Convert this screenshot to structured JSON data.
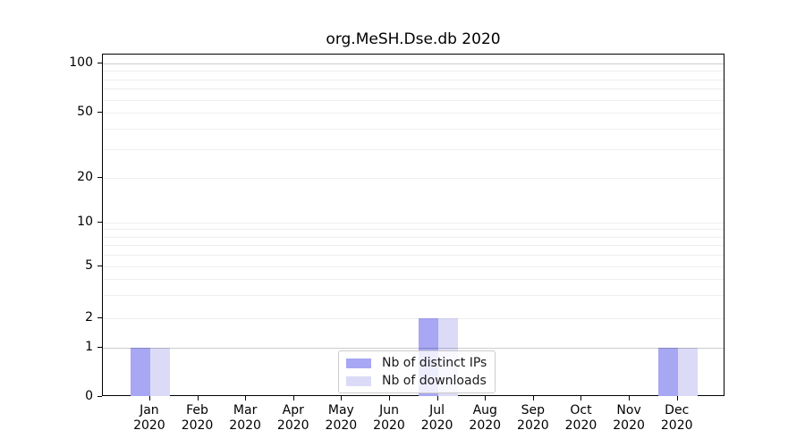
{
  "title": "org.MeSH.Dse.db 2020",
  "colors": {
    "distinct_ips_bar": "#a7a7f3",
    "downloads_bar": "#dbdbf8",
    "axis": "#000000",
    "grid_major": "#cccccc",
    "grid_minor": "#ededed"
  },
  "y_axis": {
    "tick_labels": [
      "100",
      "50",
      "20",
      "10",
      "5",
      "2",
      "1",
      "0"
    ],
    "tick_values": [
      100,
      50,
      20,
      10,
      5,
      2,
      1,
      0
    ],
    "minor_grid_values": [
      2,
      3,
      4,
      5,
      6,
      7,
      8,
      9,
      10,
      20,
      30,
      40,
      50,
      60,
      70,
      80,
      90
    ],
    "major_grid_values": [
      1,
      100
    ]
  },
  "x_axis": {
    "months": [
      {
        "label": "Jan",
        "year": "2020"
      },
      {
        "label": "Feb",
        "year": "2020"
      },
      {
        "label": "Mar",
        "year": "2020"
      },
      {
        "label": "Apr",
        "year": "2020"
      },
      {
        "label": "May",
        "year": "2020"
      },
      {
        "label": "Jun",
        "year": "2020"
      },
      {
        "label": "Jul",
        "year": "2020"
      },
      {
        "label": "Aug",
        "year": "2020"
      },
      {
        "label": "Sep",
        "year": "2020"
      },
      {
        "label": "Oct",
        "year": "2020"
      },
      {
        "label": "Nov",
        "year": "2020"
      },
      {
        "label": "Dec",
        "year": "2020"
      }
    ]
  },
  "legend": {
    "items": [
      {
        "label": "Nb of distinct IPs",
        "color": "#a7a7f3"
      },
      {
        "label": "Nb of downloads",
        "color": "#dbdbf8"
      }
    ]
  },
  "chart_data": {
    "type": "bar",
    "title": "org.MeSH.Dse.db 2020",
    "xlabel": "",
    "ylabel": "",
    "categories": [
      "Jan 2020",
      "Feb 2020",
      "Mar 2020",
      "Apr 2020",
      "May 2020",
      "Jun 2020",
      "Jul 2020",
      "Aug 2020",
      "Sep 2020",
      "Oct 2020",
      "Nov 2020",
      "Dec 2020"
    ],
    "series": [
      {
        "name": "Nb of distinct IPs",
        "color": "#a7a7f3",
        "values": [
          1,
          0,
          0,
          0,
          0,
          0,
          2,
          0,
          0,
          0,
          0,
          1
        ]
      },
      {
        "name": "Nb of downloads",
        "color": "#dbdbf8",
        "values": [
          1,
          0,
          0,
          0,
          0,
          0,
          2,
          0,
          0,
          0,
          0,
          1
        ]
      }
    ],
    "yticks": [
      0,
      1,
      2,
      5,
      10,
      20,
      50,
      100
    ],
    "ylim": [
      0,
      100
    ],
    "yscale": "log-like with zero baseline",
    "grid": true,
    "legend_position": "bottom-center"
  }
}
